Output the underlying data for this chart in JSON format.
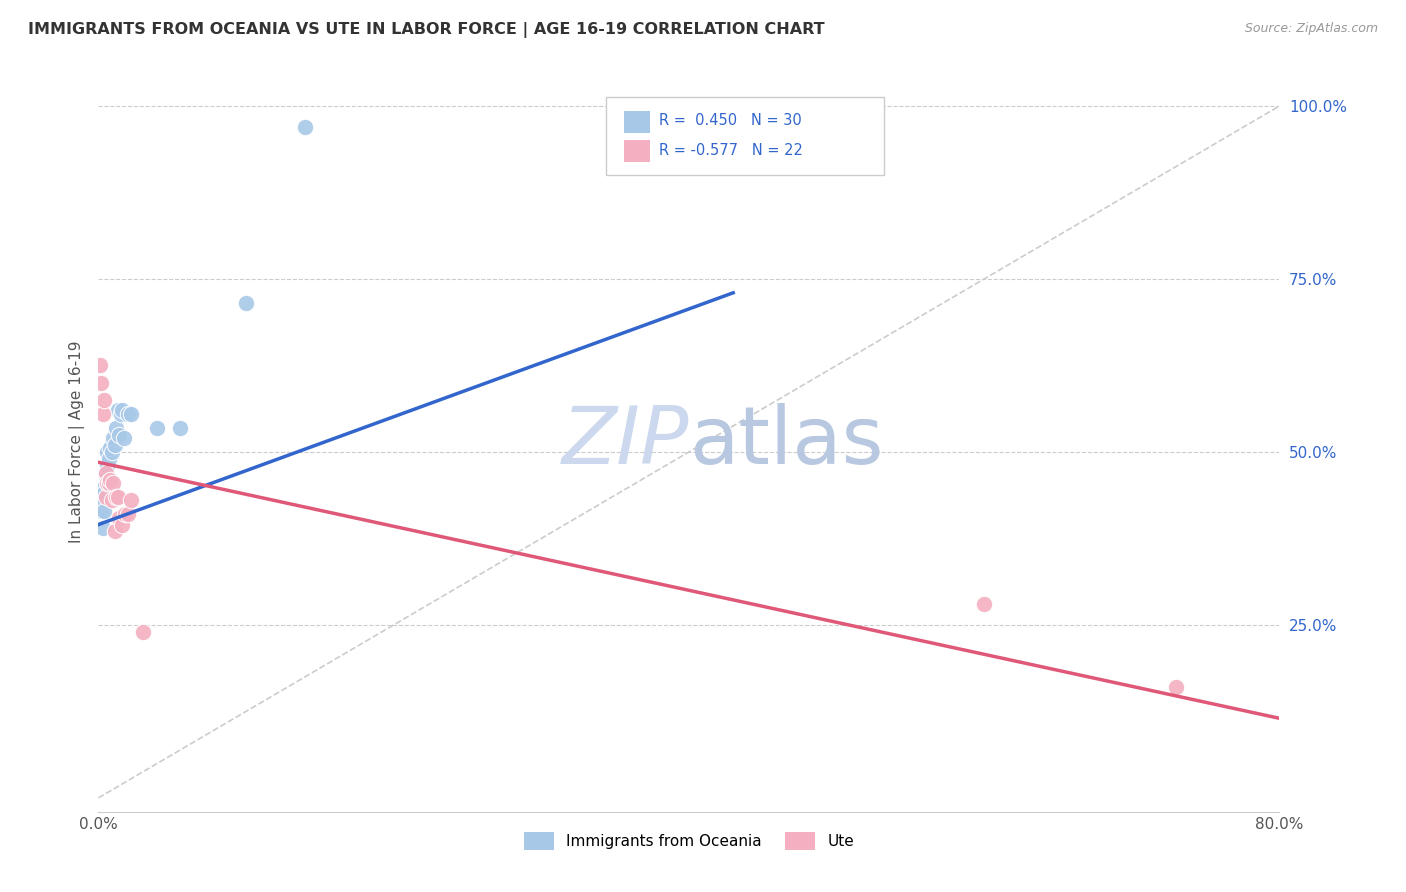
{
  "title": "IMMIGRANTS FROM OCEANIA VS UTE IN LABOR FORCE | AGE 16-19 CORRELATION CHART",
  "source": "Source: ZipAtlas.com",
  "ylabel": "In Labor Force | Age 16-19",
  "legend_label1": "Immigrants from Oceania",
  "legend_label2": "Ute",
  "r1": 0.45,
  "n1": 30,
  "r2": -0.577,
  "n2": 22,
  "blue_color": "#a8c8e8",
  "pink_color": "#f4b0c0",
  "blue_line_color": "#3366cc",
  "pink_line_color": "#e05878",
  "title_color": "#333333",
  "source_color": "#999999",
  "watermark_color": "#ccd8ee",
  "blue_scatter_x": [
    0.001,
    0.002,
    0.002,
    0.003,
    0.003,
    0.004,
    0.004,
    0.005,
    0.005,
    0.006,
    0.006,
    0.007,
    0.008,
    0.008,
    0.009,
    0.01,
    0.01,
    0.011,
    0.012,
    0.013,
    0.014,
    0.015,
    0.016,
    0.017,
    0.02,
    0.022,
    0.04,
    0.055,
    0.1,
    0.14
  ],
  "blue_scatter_y": [
    0.445,
    0.435,
    0.415,
    0.43,
    0.39,
    0.44,
    0.415,
    0.465,
    0.47,
    0.48,
    0.5,
    0.49,
    0.505,
    0.46,
    0.5,
    0.52,
    0.44,
    0.51,
    0.535,
    0.56,
    0.525,
    0.555,
    0.56,
    0.52,
    0.555,
    0.555,
    0.535,
    0.535,
    0.715,
    0.97
  ],
  "pink_scatter_x": [
    0.001,
    0.002,
    0.003,
    0.004,
    0.005,
    0.005,
    0.006,
    0.007,
    0.008,
    0.009,
    0.01,
    0.011,
    0.012,
    0.013,
    0.014,
    0.016,
    0.018,
    0.02,
    0.022,
    0.03,
    0.6,
    0.73
  ],
  "pink_scatter_y": [
    0.625,
    0.6,
    0.555,
    0.575,
    0.47,
    0.435,
    0.455,
    0.455,
    0.46,
    0.43,
    0.455,
    0.385,
    0.435,
    0.435,
    0.405,
    0.395,
    0.41,
    0.41,
    0.43,
    0.24,
    0.28,
    0.16
  ],
  "blue_line_x": [
    0.0,
    0.43
  ],
  "blue_line_y": [
    0.395,
    0.73
  ],
  "pink_line_x": [
    0.0,
    0.8
  ],
  "pink_line_y": [
    0.485,
    0.115
  ],
  "diag_line_x": [
    0.0,
    0.8
  ],
  "diag_line_y": [
    0.0,
    1.0
  ],
  "xlim": [
    0.0,
    0.8
  ],
  "ylim": [
    -0.02,
    1.05
  ],
  "xticks": [
    0.0,
    0.1,
    0.2,
    0.3,
    0.4,
    0.5,
    0.6,
    0.7,
    0.8
  ],
  "ytick_positions": [
    0.0,
    0.25,
    0.5,
    0.75,
    1.0
  ],
  "ytick_labels": [
    "",
    "25.0%",
    "50.0%",
    "75.0%",
    "100.0%"
  ]
}
